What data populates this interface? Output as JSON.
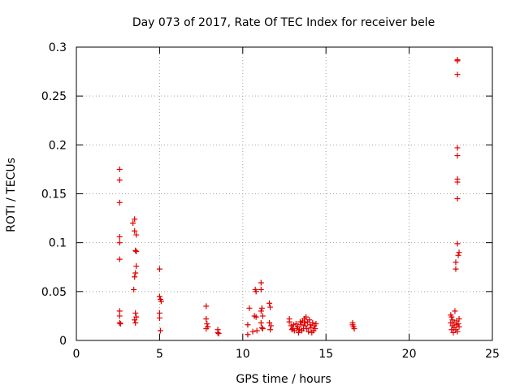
{
  "chart_data": {
    "type": "scatter",
    "title": "Day 073 of 2017, Rate Of TEC Index for receiver bele",
    "xlabel": "GPS time / hours",
    "ylabel": "ROTI / TECUs",
    "xlim": [
      0,
      25
    ],
    "ylim": [
      0,
      0.3
    ],
    "xticks": [
      0,
      5,
      10,
      15,
      20,
      25
    ],
    "yticks": [
      0,
      0.05,
      0.1,
      0.15,
      0.2,
      0.25,
      0.3
    ],
    "xtick_labels": [
      "0",
      "5",
      "10",
      "15",
      "20",
      "25"
    ],
    "ytick_labels": [
      "0",
      "0.05",
      "0.1",
      "0.15",
      "0.2",
      "0.25",
      "0.3"
    ],
    "grid": true,
    "marker": "plus",
    "color": "#e00000",
    "series": [
      {
        "points": [
          [
            2.6,
            0.175
          ],
          [
            2.6,
            0.164
          ],
          [
            2.6,
            0.141
          ],
          [
            2.6,
            0.106
          ],
          [
            2.6,
            0.1
          ],
          [
            2.6,
            0.083
          ],
          [
            2.6,
            0.03
          ],
          [
            2.6,
            0.025
          ],
          [
            2.6,
            0.018
          ],
          [
            2.65,
            0.017
          ],
          [
            3.4,
            0.12
          ],
          [
            3.5,
            0.124
          ],
          [
            3.5,
            0.112
          ],
          [
            3.6,
            0.108
          ],
          [
            3.55,
            0.092
          ],
          [
            3.6,
            0.091
          ],
          [
            3.6,
            0.076
          ],
          [
            3.55,
            0.069
          ],
          [
            3.5,
            0.065
          ],
          [
            3.45,
            0.052
          ],
          [
            3.55,
            0.028
          ],
          [
            3.5,
            0.021
          ],
          [
            3.55,
            0.018
          ],
          [
            3.6,
            0.024
          ],
          [
            5.0,
            0.073
          ],
          [
            5.0,
            0.045
          ],
          [
            5.05,
            0.042
          ],
          [
            5.1,
            0.04
          ],
          [
            5.0,
            0.028
          ],
          [
            5.0,
            0.023
          ],
          [
            5.05,
            0.01
          ],
          [
            7.8,
            0.035
          ],
          [
            7.8,
            0.022
          ],
          [
            7.85,
            0.017
          ],
          [
            7.9,
            0.014
          ],
          [
            7.8,
            0.012
          ],
          [
            8.5,
            0.011
          ],
          [
            8.5,
            0.008
          ],
          [
            8.55,
            0.007
          ],
          [
            10.4,
            0.033
          ],
          [
            10.3,
            0.016
          ],
          [
            10.3,
            0.006
          ],
          [
            10.6,
            0.009
          ],
          [
            10.75,
            0.052
          ],
          [
            10.8,
            0.05
          ],
          [
            10.7,
            0.025
          ],
          [
            10.8,
            0.024
          ],
          [
            10.85,
            0.01
          ],
          [
            11.1,
            0.059
          ],
          [
            11.1,
            0.052
          ],
          [
            11.15,
            0.033
          ],
          [
            11.1,
            0.03
          ],
          [
            11.2,
            0.025
          ],
          [
            11.1,
            0.018
          ],
          [
            11.15,
            0.013
          ],
          [
            11.2,
            0.012
          ],
          [
            11.6,
            0.038
          ],
          [
            11.65,
            0.034
          ],
          [
            11.6,
            0.018
          ],
          [
            11.7,
            0.015
          ],
          [
            11.65,
            0.011
          ],
          [
            12.8,
            0.022
          ],
          [
            12.8,
            0.019
          ],
          [
            12.9,
            0.015
          ],
          [
            13.0,
            0.012
          ],
          [
            13.1,
            0.01
          ],
          [
            13.2,
            0.017
          ],
          [
            13.3,
            0.014
          ],
          [
            13.4,
            0.011
          ],
          [
            13.5,
            0.016
          ],
          [
            13.6,
            0.02
          ],
          [
            13.7,
            0.022
          ],
          [
            13.8,
            0.024
          ],
          [
            13.9,
            0.019
          ],
          [
            13.75,
            0.015
          ],
          [
            13.65,
            0.012
          ],
          [
            13.55,
            0.01
          ],
          [
            13.85,
            0.012
          ],
          [
            13.95,
            0.009
          ],
          [
            14.05,
            0.016
          ],
          [
            14.1,
            0.013
          ],
          [
            14.2,
            0.018
          ],
          [
            14.3,
            0.015
          ],
          [
            14.35,
            0.012
          ],
          [
            14.4,
            0.017
          ],
          [
            14.25,
            0.01
          ],
          [
            14.15,
            0.008
          ],
          [
            13.45,
            0.019
          ],
          [
            13.35,
            0.008
          ],
          [
            13.25,
            0.012
          ],
          [
            13.05,
            0.016
          ],
          [
            12.95,
            0.011
          ],
          [
            14.0,
            0.021
          ],
          [
            13.7,
            0.018
          ],
          [
            16.6,
            0.018
          ],
          [
            16.6,
            0.016
          ],
          [
            16.65,
            0.014
          ],
          [
            16.7,
            0.012
          ],
          [
            22.9,
            0.287
          ],
          [
            22.9,
            0.286
          ],
          [
            22.9,
            0.272
          ],
          [
            22.9,
            0.197
          ],
          [
            22.9,
            0.189
          ],
          [
            22.9,
            0.165
          ],
          [
            22.9,
            0.162
          ],
          [
            22.9,
            0.145
          ],
          [
            22.9,
            0.099
          ],
          [
            23.0,
            0.09
          ],
          [
            22.95,
            0.087
          ],
          [
            22.8,
            0.08
          ],
          [
            22.8,
            0.073
          ],
          [
            22.5,
            0.026
          ],
          [
            22.55,
            0.024
          ],
          [
            22.6,
            0.021
          ],
          [
            22.5,
            0.018
          ],
          [
            22.6,
            0.015
          ],
          [
            22.7,
            0.013
          ],
          [
            22.8,
            0.011
          ],
          [
            22.9,
            0.009
          ],
          [
            22.75,
            0.03
          ],
          [
            22.85,
            0.02
          ],
          [
            22.95,
            0.017
          ],
          [
            23.0,
            0.014
          ],
          [
            22.65,
            0.008
          ],
          [
            22.55,
            0.011
          ],
          [
            23.0,
            0.022
          ],
          [
            22.7,
            0.018
          ],
          [
            22.85,
            0.016
          ]
        ]
      }
    ]
  }
}
